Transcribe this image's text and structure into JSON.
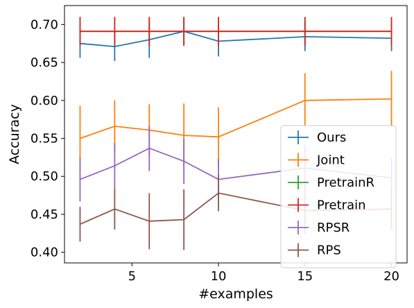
{
  "chart_data": {
    "type": "line",
    "title": "",
    "xlabel": "#examples",
    "ylabel": "Accuracy",
    "x": [
      2,
      4,
      6,
      8,
      10,
      15,
      20
    ],
    "xlim": [
      1.1,
      20.9
    ],
    "ylim": [
      0.386,
      0.725
    ],
    "xticks": [
      5,
      10,
      15,
      20
    ],
    "yticks": [
      0.4,
      0.45,
      0.5,
      0.55,
      0.6,
      0.65,
      0.7
    ],
    "xtick_labels": [
      "5",
      "10",
      "15",
      "20"
    ],
    "ytick_labels": [
      "0.40",
      "0.45",
      "0.50",
      "0.55",
      "0.60",
      "0.65",
      "0.70"
    ],
    "grid": false,
    "legend_position": "lower-right",
    "error_bars": true,
    "series": [
      {
        "name": "Ours",
        "color": "#1f77b4",
        "values": [
          0.675,
          0.671,
          0.68,
          0.691,
          0.678,
          0.684,
          0.682
        ],
        "errors": [
          0.019,
          0.019,
          0.024,
          0.019,
          0.02,
          0.019,
          0.017
        ]
      },
      {
        "name": "Joint",
        "color": "#ff7f0e",
        "values": [
          0.55,
          0.566,
          0.561,
          0.554,
          0.552,
          0.6,
          0.602
        ],
        "errors": [
          0.043,
          0.034,
          0.034,
          0.042,
          0.039,
          0.036,
          0.037
        ]
      },
      {
        "name": "PretrainR",
        "color": "#2ca02c",
        "values": [
          0.691,
          0.691,
          0.691,
          0.691,
          0.691,
          0.691,
          0.691
        ],
        "errors": [
          0.019,
          0.019,
          0.019,
          0.019,
          0.019,
          0.019,
          0.019
        ]
      },
      {
        "name": "Pretrain",
        "color": "#d62728",
        "values": [
          0.691,
          0.691,
          0.691,
          0.691,
          0.691,
          0.691,
          0.691
        ],
        "errors": [
          0.019,
          0.019,
          0.019,
          0.019,
          0.019,
          0.019,
          0.019
        ]
      },
      {
        "name": "RPSR",
        "color": "#9467bd",
        "values": [
          0.496,
          0.514,
          0.537,
          0.52,
          0.496,
          0.511,
          0.498
        ],
        "errors": [
          0.029,
          0.03,
          0.03,
          0.03,
          0.027,
          0.03,
          0.026
        ]
      },
      {
        "name": "RPS",
        "color": "#8c564b",
        "values": [
          0.437,
          0.457,
          0.441,
          0.443,
          0.478,
          0.455,
          0.457
        ],
        "errors": [
          0.023,
          0.027,
          0.037,
          0.04,
          0.024,
          0.03,
          0.027
        ]
      }
    ]
  }
}
